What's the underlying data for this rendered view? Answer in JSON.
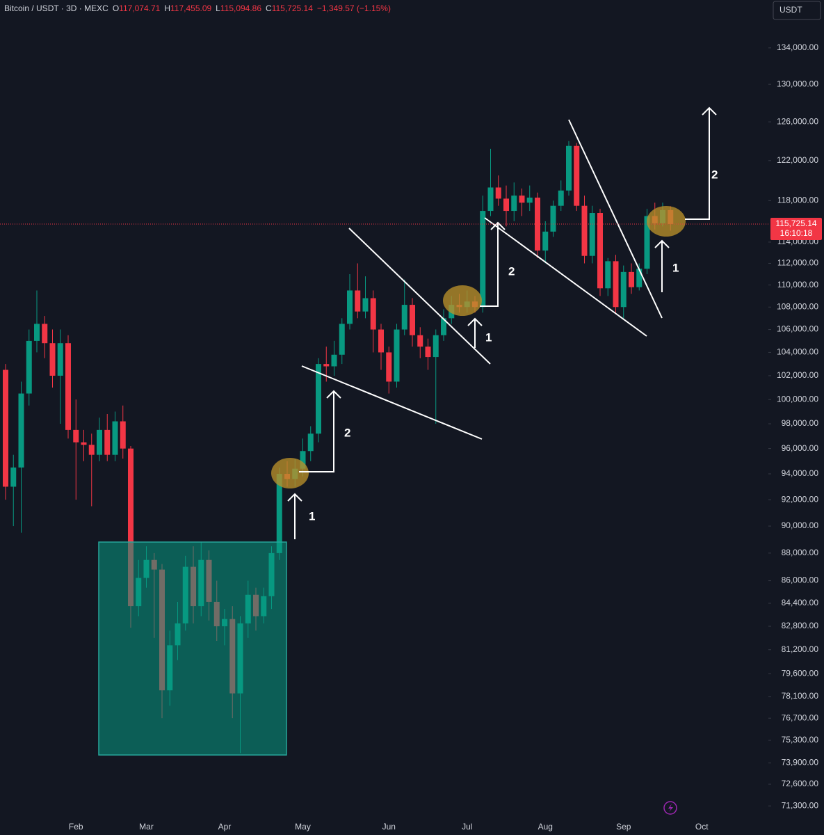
{
  "chart_data": {
    "type": "candlestick",
    "header": {
      "symbol": "Bitcoin / USDT · 3D · MEXC",
      "ohlc": [
        {
          "key": "O",
          "value": "117,074.71"
        },
        {
          "key": "H",
          "value": "117,455.09"
        },
        {
          "key": "L",
          "value": "115,094.86"
        },
        {
          "key": "C",
          "value": "115,725.14"
        }
      ],
      "change": "−1,349.57 (−1.15%)"
    },
    "currency": "USDT",
    "price_tag": {
      "label": "115,725.14",
      "time": "16:10:18"
    },
    "annotations": [
      "1",
      "2",
      "1",
      "2",
      "1",
      "2"
    ],
    "up_color": "#089981",
    "down_color": "#f23645",
    "log_scale": true,
    "ylim": [
      70610,
      139450
    ],
    "yticks": [
      {
        "value": 134000,
        "label": "134,000.00"
      },
      {
        "value": 130000,
        "label": "130,000.00"
      },
      {
        "value": 126000,
        "label": "126,000.00"
      },
      {
        "value": 122000,
        "label": "122,000.00"
      },
      {
        "value": 118000,
        "label": "118,000.00"
      },
      {
        "value": 114000,
        "label": "114,000.00"
      },
      {
        "value": 112000,
        "label": "112,000.00"
      },
      {
        "value": 110000,
        "label": "110,000.00"
      },
      {
        "value": 108000,
        "label": "108,000.00"
      },
      {
        "value": 106000,
        "label": "106,000.00"
      },
      {
        "value": 104000,
        "label": "104,000.00"
      },
      {
        "value": 102000,
        "label": "102,000.00"
      },
      {
        "value": 100000,
        "label": "100,000.00"
      },
      {
        "value": 98000,
        "label": "98,000.00"
      },
      {
        "value": 96000,
        "label": "96,000.00"
      },
      {
        "value": 94000,
        "label": "94,000.00"
      },
      {
        "value": 92000,
        "label": "92,000.00"
      },
      {
        "value": 90000,
        "label": "90,000.00"
      },
      {
        "value": 88000,
        "label": "88,000.00"
      },
      {
        "value": 86000,
        "label": "86,000.00"
      },
      {
        "value": 84400,
        "label": "84,400.00"
      },
      {
        "value": 82800,
        "label": "82,800.00"
      },
      {
        "value": 81200,
        "label": "81,200.00"
      },
      {
        "value": 79600,
        "label": "79,600.00"
      },
      {
        "value": 78100,
        "label": "78,100.00"
      },
      {
        "value": 76700,
        "label": "76,700.00"
      },
      {
        "value": 75300,
        "label": "75,300.00"
      },
      {
        "value": 73900,
        "label": "73,900.00"
      },
      {
        "value": 72600,
        "label": "72,600.00"
      },
      {
        "value": 71300,
        "label": "71,300.00"
      }
    ],
    "categories": [
      null,
      null,
      null,
      null,
      null,
      null,
      null,
      null,
      null,
      "Feb",
      null,
      null,
      null,
      null,
      null,
      null,
      null,
      null,
      "Mar",
      null,
      null,
      null,
      null,
      null,
      null,
      null,
      null,
      null,
      "Apr",
      null,
      null,
      null,
      null,
      null,
      null,
      null,
      null,
      null,
      "May",
      null,
      null,
      null,
      null,
      null,
      null,
      null,
      null,
      null,
      null,
      "Jun",
      null,
      null,
      null,
      null,
      null,
      null,
      null,
      null,
      null,
      "Jul",
      null,
      null,
      null,
      null,
      null,
      null,
      null,
      null,
      null,
      "Aug",
      null,
      null,
      null,
      null,
      null,
      null,
      null,
      null,
      null,
      "Sep",
      null,
      null,
      null,
      null,
      null,
      null,
      null,
      null,
      null,
      "Oct"
    ],
    "open": [
      102500,
      93000,
      94500,
      100500,
      105000,
      106500,
      104800,
      102000,
      104800,
      97500,
      96500,
      96300,
      95500,
      97500,
      95500,
      98200,
      96000,
      84200,
      86200,
      87500,
      86800,
      78500,
      81500,
      83000,
      87000,
      84200,
      87500,
      84500,
      82800,
      83300,
      78300,
      83000,
      85000,
      83500,
      84900,
      88000,
      94000,
      93600,
      94400,
      95800,
      97200,
      103000,
      102800,
      103800,
      106500,
      109500,
      107600,
      108800,
      106000,
      104000,
      101500,
      106000,
      108200,
      105500,
      104500,
      103600,
      105500,
      107000,
      108200,
      108000,
      108500,
      108000,
      117000,
      119300,
      118200,
      117000,
      118500,
      117800,
      118300,
      113200,
      115000,
      117500,
      119000,
      123500,
      117500,
      112700,
      116800,
      109700,
      112200,
      108000,
      111200,
      109800,
      111500,
      116500,
      115800,
      117074.71,
      null,
      null,
      null,
      null
    ],
    "high": [
      103000,
      95500,
      101500,
      106000,
      109500,
      107200,
      106000,
      106000,
      105500,
      100000,
      97500,
      97200,
      98500,
      98800,
      99000,
      99500,
      96200,
      87500,
      88500,
      88000,
      87200,
      82500,
      84500,
      87800,
      88500,
      88800,
      88200,
      86000,
      84000,
      84200,
      83500,
      86000,
      85500,
      85500,
      88500,
      94500,
      95000,
      95200,
      96800,
      97800,
      103500,
      104500,
      105000,
      107000,
      111000,
      112000,
      110800,
      109500,
      106500,
      104500,
      106500,
      110500,
      108800,
      106200,
      105200,
      106000,
      107800,
      109000,
      109200,
      109500,
      109000,
      118500,
      123200,
      120500,
      119500,
      119800,
      119200,
      119500,
      118800,
      116000,
      118000,
      120000,
      124000,
      123800,
      118500,
      117500,
      117200,
      112500,
      112800,
      111800,
      112000,
      112000,
      117200,
      117800,
      117800,
      117455.09,
      null,
      null,
      null,
      null
    ],
    "low": [
      92000,
      90000,
      89500,
      99500,
      104000,
      103500,
      101000,
      98000,
      96800,
      92000,
      95000,
      91500,
      95000,
      95000,
      95000,
      95200,
      82700,
      83500,
      85500,
      82000,
      76700,
      77500,
      80500,
      82500,
      83000,
      83500,
      83200,
      81800,
      81500,
      76700,
      74500,
      82000,
      82500,
      83000,
      84000,
      87500,
      93000,
      93000,
      93800,
      95000,
      96500,
      101500,
      102000,
      103000,
      106000,
      107000,
      107000,
      104000,
      102500,
      100500,
      101000,
      105500,
      104500,
      103500,
      102500,
      98000,
      105000,
      106500,
      107500,
      107500,
      107500,
      107500,
      116500,
      117500,
      115500,
      116000,
      116500,
      117000,
      112500,
      112000,
      114500,
      117000,
      118500,
      117000,
      112000,
      112000,
      109000,
      109000,
      107500,
      107000,
      109200,
      109500,
      111000,
      115200,
      115500,
      115094.86,
      null,
      null,
      null,
      null
    ],
    "close": [
      93000,
      94500,
      100500,
      105000,
      106500,
      104800,
      102000,
      104800,
      97500,
      96500,
      96300,
      95500,
      97500,
      95500,
      98200,
      96000,
      84200,
      86200,
      87500,
      86800,
      78500,
      81500,
      83000,
      87000,
      84200,
      87500,
      84500,
      82800,
      83300,
      78300,
      83000,
      85000,
      83500,
      84900,
      88000,
      94000,
      93600,
      94400,
      95800,
      97200,
      103000,
      102800,
      103800,
      106500,
      109500,
      107600,
      108800,
      106000,
      104000,
      101500,
      106000,
      108200,
      105500,
      104500,
      103600,
      105500,
      107000,
      108200,
      108000,
      108500,
      108000,
      117000,
      119300,
      118200,
      117000,
      118500,
      117800,
      118300,
      113200,
      115000,
      117500,
      119000,
      123500,
      117500,
      112700,
      116800,
      109700,
      112200,
      108000,
      111200,
      109800,
      111500,
      116500,
      115800,
      117074.71,
      115725.14,
      null,
      null,
      null,
      null
    ]
  }
}
